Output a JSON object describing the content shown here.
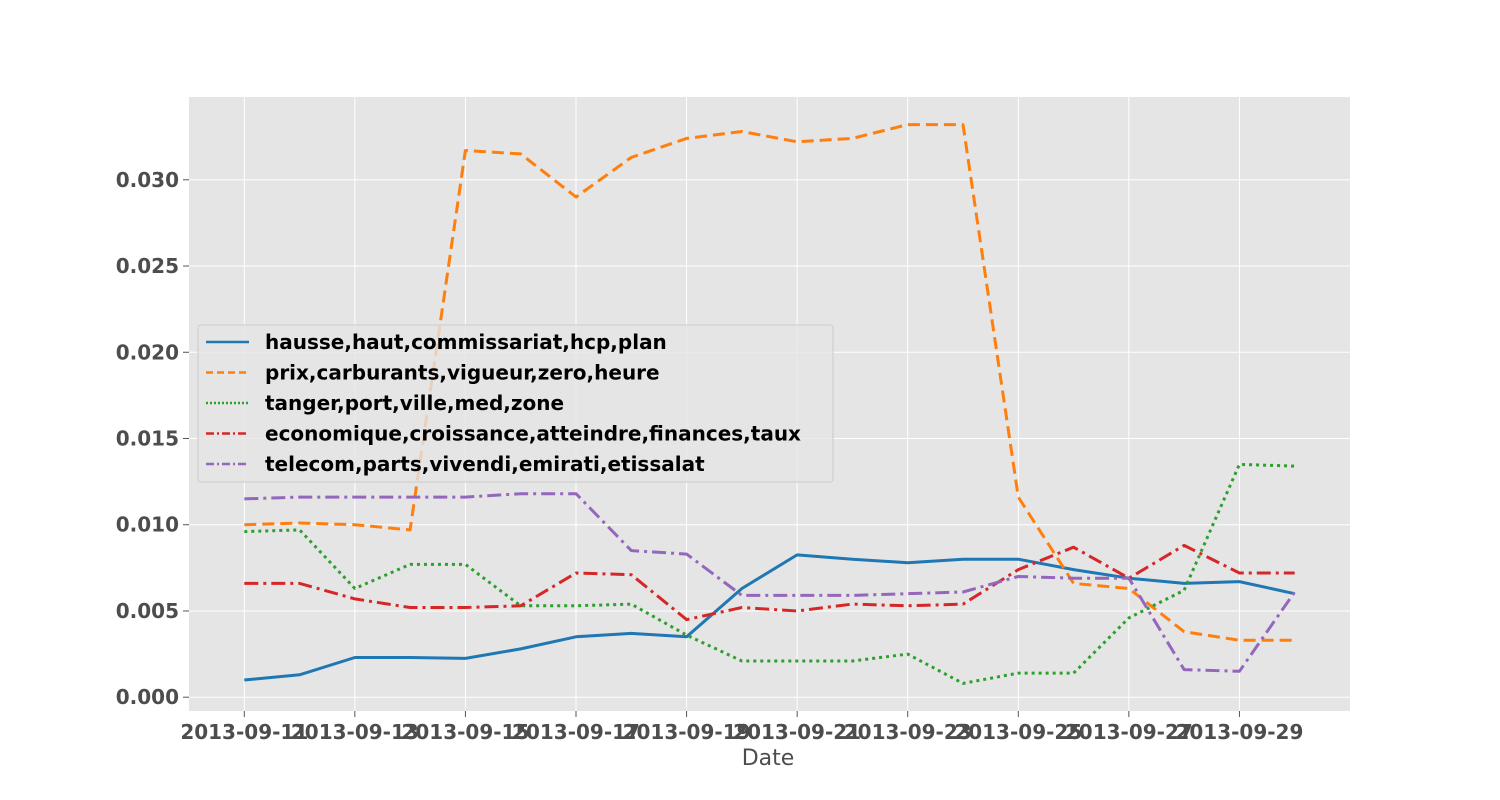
{
  "chart_data": {
    "type": "line",
    "xlabel": "Date",
    "ylabel": "",
    "ylim": [
      -0.0008,
      0.0348
    ],
    "yticks": [
      0.0,
      0.005,
      0.01,
      0.015,
      0.02,
      0.025,
      0.03
    ],
    "ytick_labels": [
      "0.000",
      "0.005",
      "0.010",
      "0.015",
      "0.020",
      "0.025",
      "0.030"
    ],
    "xlim": [
      "2013-09-10",
      "2013-10-01"
    ],
    "xticks": [
      "2013-09-11",
      "2013-09-13",
      "2013-09-15",
      "2013-09-17",
      "2013-09-19",
      "2013-09-21",
      "2013-09-23",
      "2013-09-25",
      "2013-09-27",
      "2013-09-29"
    ],
    "grid": true,
    "legend_position": "center-left",
    "x": [
      "2013-09-11",
      "2013-09-12",
      "2013-09-13",
      "2013-09-14",
      "2013-09-15",
      "2013-09-16",
      "2013-09-17",
      "2013-09-18",
      "2013-09-19",
      "2013-09-20",
      "2013-09-21",
      "2013-09-22",
      "2013-09-23",
      "2013-09-24",
      "2013-09-25",
      "2013-09-26",
      "2013-09-27",
      "2013-09-28",
      "2013-09-29",
      "2013-09-30"
    ],
    "series": [
      {
        "name": "hausse,haut,commissariat,hcp,plan",
        "color": "#1f77b4",
        "dash": "solid",
        "values": [
          0.001,
          0.0013,
          0.0023,
          0.0023,
          0.00225,
          0.0028,
          0.0035,
          0.0037,
          0.0035,
          0.0063,
          0.00825,
          0.008,
          0.0078,
          0.008,
          0.008,
          0.0074,
          0.0069,
          0.0066,
          0.0067,
          0.006
        ]
      },
      {
        "name": "prix,carburants,vigueur,zero,heure",
        "color": "#ff7f0e",
        "dash": "dashed",
        "values": [
          0.01,
          0.0101,
          0.01,
          0.0097,
          0.0317,
          0.0315,
          0.029,
          0.0313,
          0.0324,
          0.0328,
          0.0322,
          0.0324,
          0.0332,
          0.0332,
          0.0116,
          0.0066,
          0.0063,
          0.0038,
          0.0033,
          0.0033
        ]
      },
      {
        "name": "tanger,port,ville,med,zone",
        "color": "#2ca02c",
        "dash": "dotted",
        "values": [
          0.0096,
          0.0097,
          0.0063,
          0.0077,
          0.0077,
          0.0053,
          0.0053,
          0.0054,
          0.0036,
          0.0021,
          0.0021,
          0.0021,
          0.0025,
          0.0008,
          0.0014,
          0.0014,
          0.0046,
          0.0062,
          0.0135,
          0.0134
        ]
      },
      {
        "name": "economique,croissance,atteindre,finances,taux",
        "color": "#d62728",
        "dash": "dashdot",
        "values": [
          0.0066,
          0.0066,
          0.0057,
          0.0052,
          0.0052,
          0.0053,
          0.0072,
          0.0071,
          0.0045,
          0.0052,
          0.005,
          0.0054,
          0.0053,
          0.0054,
          0.0074,
          0.0087,
          0.0069,
          0.0088,
          0.0072,
          0.0072
        ]
      },
      {
        "name": "telecom,parts,vivendi,emirati,etissalat",
        "color": "#9467bd",
        "dash": "dashdot",
        "values": [
          0.0115,
          0.0116,
          0.0116,
          0.0116,
          0.0116,
          0.0118,
          0.0118,
          0.0085,
          0.0083,
          0.0059,
          0.0059,
          0.0059,
          0.006,
          0.0061,
          0.007,
          0.0069,
          0.0069,
          0.0016,
          0.0015,
          0.0061
        ]
      }
    ]
  }
}
